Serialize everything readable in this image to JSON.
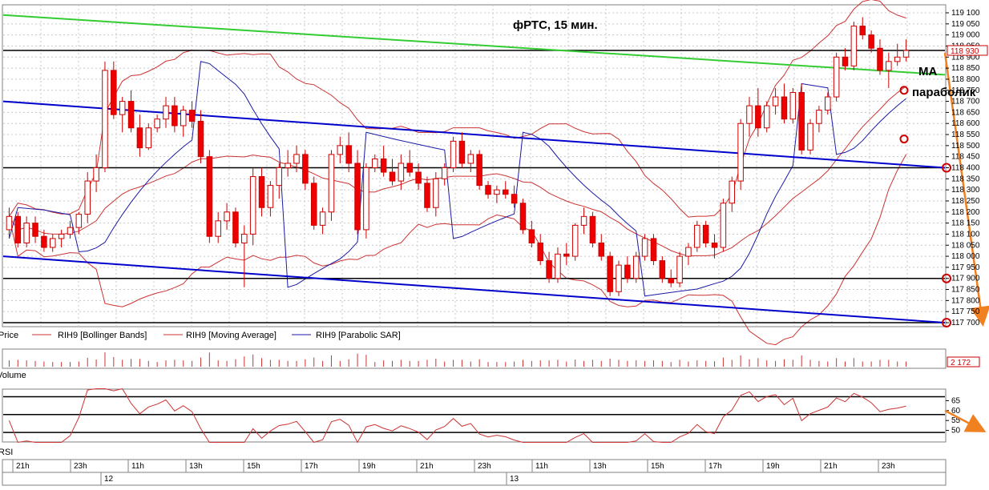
{
  "chart_data": {
    "type": "candlestick",
    "title": "фРТС,  15 мин.",
    "annotations": [
      "MA",
      "параболик"
    ],
    "price_axis": {
      "ticks": [
        "119 100",
        "119 050",
        "119 000",
        "118 950",
        "118 900",
        "118 850",
        "118 800",
        "118 750",
        "118 700",
        "118 650",
        "118 600",
        "118 550",
        "118 500",
        "118 450",
        "118 400",
        "118 350",
        "118 300",
        "118 250",
        "118 200",
        "118 150",
        "118 100",
        "118 050",
        "118 000",
        "117 950",
        "117 900",
        "117 850",
        "117 800",
        "117 750",
        "117 700"
      ],
      "ylim": [
        117700,
        119100
      ],
      "last_price": "118 930"
    },
    "legend": [
      "Price",
      "RIH9 [Bollinger Bands]",
      "RIH9 [Moving Average]",
      "RIH9 [Parabolic SAR]"
    ],
    "volume_panel": {
      "label": "Volume",
      "last_value": "2 172"
    },
    "rsi_panel": {
      "label": "RSI",
      "ticks": [
        "65",
        "60",
        "55",
        "50"
      ],
      "levels": [
        67,
        58,
        49
      ]
    },
    "time_axis": {
      "ticks": [
        "21h",
        "23h",
        "11h",
        "13h",
        "15h",
        "17h",
        "19h",
        "21h",
        "23h",
        "11h",
        "13h",
        "15h",
        "17h",
        "19h",
        "21h",
        "23h"
      ],
      "dates": [
        "12",
        "13"
      ]
    },
    "horizontal_levels": [
      118930,
      118400,
      117900,
      117700
    ],
    "trend_lines": [
      {
        "name": "green resistance",
        "color": "#33cc33",
        "from": [
          0,
          119090
        ],
        "to": [
          100,
          118820
        ]
      },
      {
        "name": "upper channel",
        "color": "#0000cc",
        "from": [
          0,
          118700
        ],
        "to": [
          100,
          118400
        ]
      },
      {
        "name": "lower channel",
        "color": "#0000cc",
        "from": [
          0,
          118000
        ],
        "to": [
          100,
          117700
        ]
      }
    ],
    "forecast_arrows": [
      {
        "panel": "price",
        "from": [
          100,
          118920
        ],
        "to": [
          111,
          117700
        ]
      },
      {
        "panel": "rsi",
        "from": [
          100,
          60
        ],
        "to": [
          111,
          50
        ]
      }
    ],
    "candles": [
      [
        118120,
        118220,
        118080,
        118180
      ],
      [
        118180,
        118200,
        118040,
        118060
      ],
      [
        118060,
        118180,
        118040,
        118150
      ],
      [
        118150,
        118180,
        118060,
        118090
      ],
      [
        118090,
        118120,
        118020,
        118040
      ],
      [
        118040,
        118100,
        118020,
        118080
      ],
      [
        118080,
        118120,
        118040,
        118100
      ],
      [
        118100,
        118160,
        118080,
        118130
      ],
      [
        118130,
        118200,
        118100,
        118190
      ],
      [
        118190,
        118380,
        118150,
        118340
      ],
      [
        118340,
        118460,
        118290,
        118400
      ],
      [
        118400,
        118880,
        118380,
        118840
      ],
      [
        118840,
        118880,
        118620,
        118640
      ],
      [
        118640,
        118720,
        118560,
        118700
      ],
      [
        118700,
        118750,
        118560,
        118580
      ],
      [
        118580,
        118640,
        118450,
        118490
      ],
      [
        118490,
        118600,
        118480,
        118580
      ],
      [
        118580,
        118640,
        118560,
        118620
      ],
      [
        118620,
        118720,
        118580,
        118680
      ],
      [
        118680,
        118720,
        118560,
        118590
      ],
      [
        118590,
        118680,
        118540,
        118660
      ],
      [
        118660,
        118700,
        118580,
        118610
      ],
      [
        118610,
        118660,
        118420,
        118450
      ],
      [
        118450,
        118480,
        118060,
        118090
      ],
      [
        118090,
        118200,
        118060,
        118160
      ],
      [
        118160,
        118240,
        118120,
        118200
      ],
      [
        118200,
        118220,
        118040,
        118060
      ],
      [
        118060,
        118140,
        117860,
        118100
      ],
      [
        118100,
        118400,
        118050,
        118360
      ],
      [
        118360,
        118400,
        118180,
        118220
      ],
      [
        118220,
        118340,
        118180,
        118320
      ],
      [
        118320,
        118420,
        118260,
        118400
      ],
      [
        118400,
        118480,
        118360,
        118420
      ],
      [
        118420,
        118500,
        118380,
        118460
      ],
      [
        118460,
        118480,
        118300,
        118330
      ],
      [
        118330,
        118360,
        118120,
        118140
      ],
      [
        118140,
        118220,
        118100,
        118200
      ],
      [
        118200,
        118480,
        118160,
        118460
      ],
      [
        118460,
        118540,
        118420,
        118500
      ],
      [
        118500,
        118560,
        118380,
        118420
      ],
      [
        118420,
        118480,
        118100,
        118120
      ],
      [
        118120,
        118420,
        118080,
        118400
      ],
      [
        118400,
        118460,
        118380,
        118440
      ],
      [
        118440,
        118500,
        118360,
        118380
      ],
      [
        118380,
        118440,
        118320,
        118340
      ],
      [
        118340,
        118460,
        118300,
        118420
      ],
      [
        118420,
        118480,
        118360,
        118380
      ],
      [
        118380,
        118420,
        118300,
        118330
      ],
      [
        118330,
        118360,
        118200,
        118220
      ],
      [
        118220,
        118380,
        118180,
        118350
      ],
      [
        118350,
        118420,
        118320,
        118400
      ],
      [
        118400,
        118540,
        118380,
        118520
      ],
      [
        118520,
        118560,
        118400,
        118420
      ],
      [
        118420,
        118480,
        118380,
        118460
      ],
      [
        118460,
        118480,
        118300,
        118320
      ],
      [
        118320,
        118340,
        118260,
        118280
      ],
      [
        118280,
        118320,
        118240,
        118300
      ],
      [
        118300,
        118340,
        118260,
        118280
      ],
      [
        118280,
        118320,
        118220,
        118240
      ],
      [
        118240,
        118260,
        118100,
        118120
      ],
      [
        118120,
        118160,
        118040,
        118060
      ],
      [
        118060,
        118100,
        117960,
        117980
      ],
      [
        117980,
        118020,
        117880,
        117900
      ],
      [
        117900,
        118040,
        117880,
        118010
      ],
      [
        118010,
        118060,
        117960,
        118000
      ],
      [
        118000,
        118150,
        117980,
        118140
      ],
      [
        118140,
        118220,
        118100,
        118180
      ],
      [
        118180,
        118200,
        118040,
        118060
      ],
      [
        118060,
        118100,
        117980,
        118000
      ],
      [
        118000,
        118020,
        117820,
        117840
      ],
      [
        117840,
        117980,
        117820,
        117960
      ],
      [
        117960,
        118000,
        117880,
        117900
      ],
      [
        117900,
        118020,
        117880,
        118000
      ],
      [
        118000,
        118100,
        117980,
        118080
      ],
      [
        118080,
        118100,
        117960,
        117980
      ],
      [
        117980,
        118000,
        117880,
        117900
      ],
      [
        117900,
        117940,
        117860,
        117880
      ],
      [
        117880,
        118020,
        117860,
        118000
      ],
      [
        118000,
        118060,
        117960,
        118040
      ],
      [
        118040,
        118160,
        118020,
        118140
      ],
      [
        118140,
        118160,
        118040,
        118060
      ],
      [
        118060,
        118100,
        117990,
        118040
      ],
      [
        118040,
        118260,
        118020,
        118240
      ],
      [
        118240,
        118360,
        118200,
        118340
      ],
      [
        118340,
        118620,
        118300,
        118600
      ],
      [
        118600,
        118720,
        118540,
        118680
      ],
      [
        118680,
        118760,
        118540,
        118580
      ],
      [
        118580,
        118700,
        118560,
        118680
      ],
      [
        118680,
        118760,
        118640,
        118720
      ],
      [
        118720,
        118780,
        118600,
        118620
      ],
      [
        118620,
        118760,
        118600,
        118740
      ],
      [
        118740,
        118780,
        118460,
        118480
      ],
      [
        118480,
        118620,
        118460,
        118600
      ],
      [
        118600,
        118680,
        118560,
        118660
      ],
      [
        118660,
        118740,
        118640,
        118720
      ],
      [
        118720,
        118920,
        118700,
        118900
      ],
      [
        118900,
        118940,
        118840,
        118860
      ],
      [
        118860,
        119060,
        118840,
        119040
      ],
      [
        119040,
        119080,
        118980,
        119000
      ],
      [
        119000,
        119020,
        118920,
        118940
      ],
      [
        118940,
        118980,
        118820,
        118840
      ],
      [
        118840,
        118920,
        118760,
        118880
      ],
      [
        118880,
        118960,
        118860,
        118900
      ],
      [
        118900,
        118980,
        118880,
        118930
      ]
    ]
  }
}
